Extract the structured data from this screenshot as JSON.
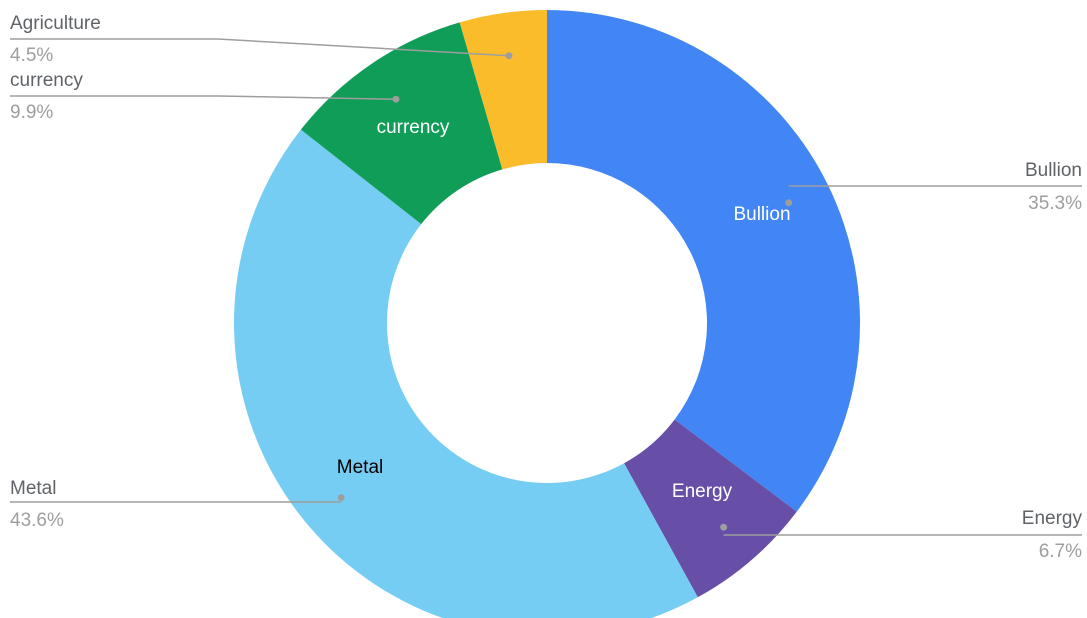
{
  "chart_data": {
    "type": "pie",
    "donut": true,
    "start_angle_deg": 0,
    "direction": "clockwise",
    "slices": [
      {
        "label": "Bullion",
        "value": 35.3,
        "percent_label": "35.3%",
        "color": "#4285f4",
        "inside_text_color": "#ffffff",
        "show_inside_label": true
      },
      {
        "label": "Energy",
        "value": 6.7,
        "percent_label": "6.7%",
        "color": "#674ea7",
        "inside_text_color": "#ffffff",
        "show_inside_label": true
      },
      {
        "label": "Metal",
        "value": 43.6,
        "percent_label": "43.6%",
        "color": "#76cdf3",
        "inside_text_color": "#000000",
        "show_inside_label": true
      },
      {
        "label": "currency",
        "value": 9.9,
        "percent_label": "9.9%",
        "color": "#0f9d58",
        "inside_text_color": "#ffffff",
        "show_inside_label": true
      },
      {
        "label": "Agriculture",
        "value": 4.5,
        "percent_label": "4.5%",
        "color": "#fbbc2c",
        "inside_text_color": "#ffffff",
        "show_inside_label": false
      }
    ]
  }
}
